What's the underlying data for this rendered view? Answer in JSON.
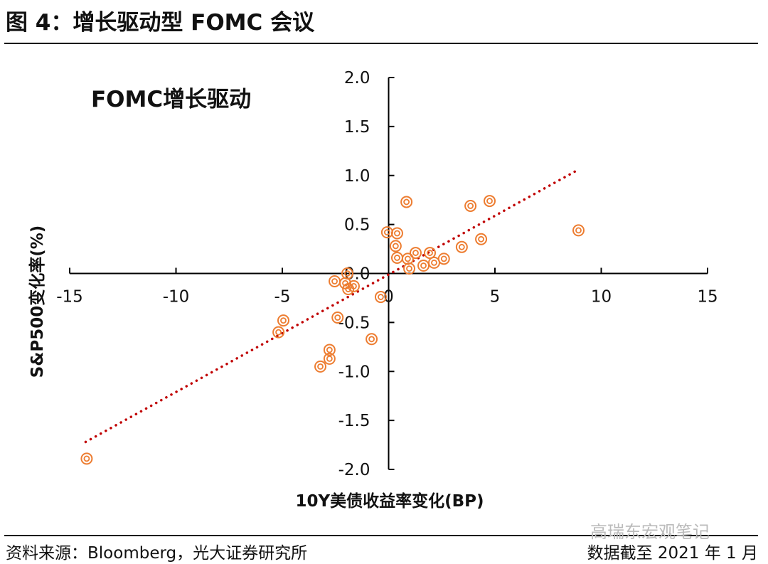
{
  "header": {
    "title": "图 4：增长驱动型 FOMC 会议"
  },
  "footer": {
    "source": "资料来源：Bloomberg，光大证券研究所",
    "date_note": "数据截至 2021 年 1 月",
    "watermark": "高瑞东宏观笔记"
  },
  "chart_data": {
    "type": "scatter",
    "title": "FOMC增长驱动",
    "xlabel": "10Y美债收益率变化(BP)",
    "ylabel": "S&P500变化率(%)",
    "xlim": [
      -15,
      15
    ],
    "ylim": [
      -2,
      2
    ],
    "xticks": [
      "-15",
      "-10",
      "-5",
      "0",
      "5",
      "10",
      "15"
    ],
    "yticks": [
      "2.0",
      "1.5",
      "1.0",
      "0.5",
      "0.0",
      "-0.5",
      "-1.0",
      "-1.5",
      "-2.0"
    ],
    "colors": {
      "marker": "#ED7D31",
      "trend": "#C00000"
    },
    "points": [
      [
        0.84,
        0.73
      ],
      [
        3.85,
        0.69
      ],
      [
        4.75,
        0.74
      ],
      [
        8.93,
        0.44
      ],
      [
        4.35,
        0.35
      ],
      [
        3.44,
        0.27
      ],
      [
        -0.07,
        0.42
      ],
      [
        0.4,
        0.41
      ],
      [
        0.33,
        0.28
      ],
      [
        0.4,
        0.16
      ],
      [
        0.9,
        0.15
      ],
      [
        1.27,
        0.21
      ],
      [
        1.94,
        0.21
      ],
      [
        1.64,
        0.08
      ],
      [
        2.14,
        0.11
      ],
      [
        2.6,
        0.15
      ],
      [
        0.97,
        0.05
      ],
      [
        -2.54,
        -0.08
      ],
      [
        -2.04,
        -0.1
      ],
      [
        -1.94,
        0.0
      ],
      [
        -1.64,
        -0.13
      ],
      [
        -1.9,
        -0.16
      ],
      [
        -0.37,
        -0.24
      ],
      [
        -2.4,
        -0.45
      ],
      [
        -4.95,
        -0.48
      ],
      [
        -5.18,
        -0.6
      ],
      [
        -0.8,
        -0.67
      ],
      [
        -2.78,
        -0.78
      ],
      [
        -2.78,
        -0.87
      ],
      [
        -3.21,
        -0.95
      ],
      [
        -14.2,
        -1.89
      ]
    ],
    "trendline": {
      "x": [
        -14.25,
        8.76
      ],
      "y": [
        -1.72,
        1.04
      ]
    }
  }
}
